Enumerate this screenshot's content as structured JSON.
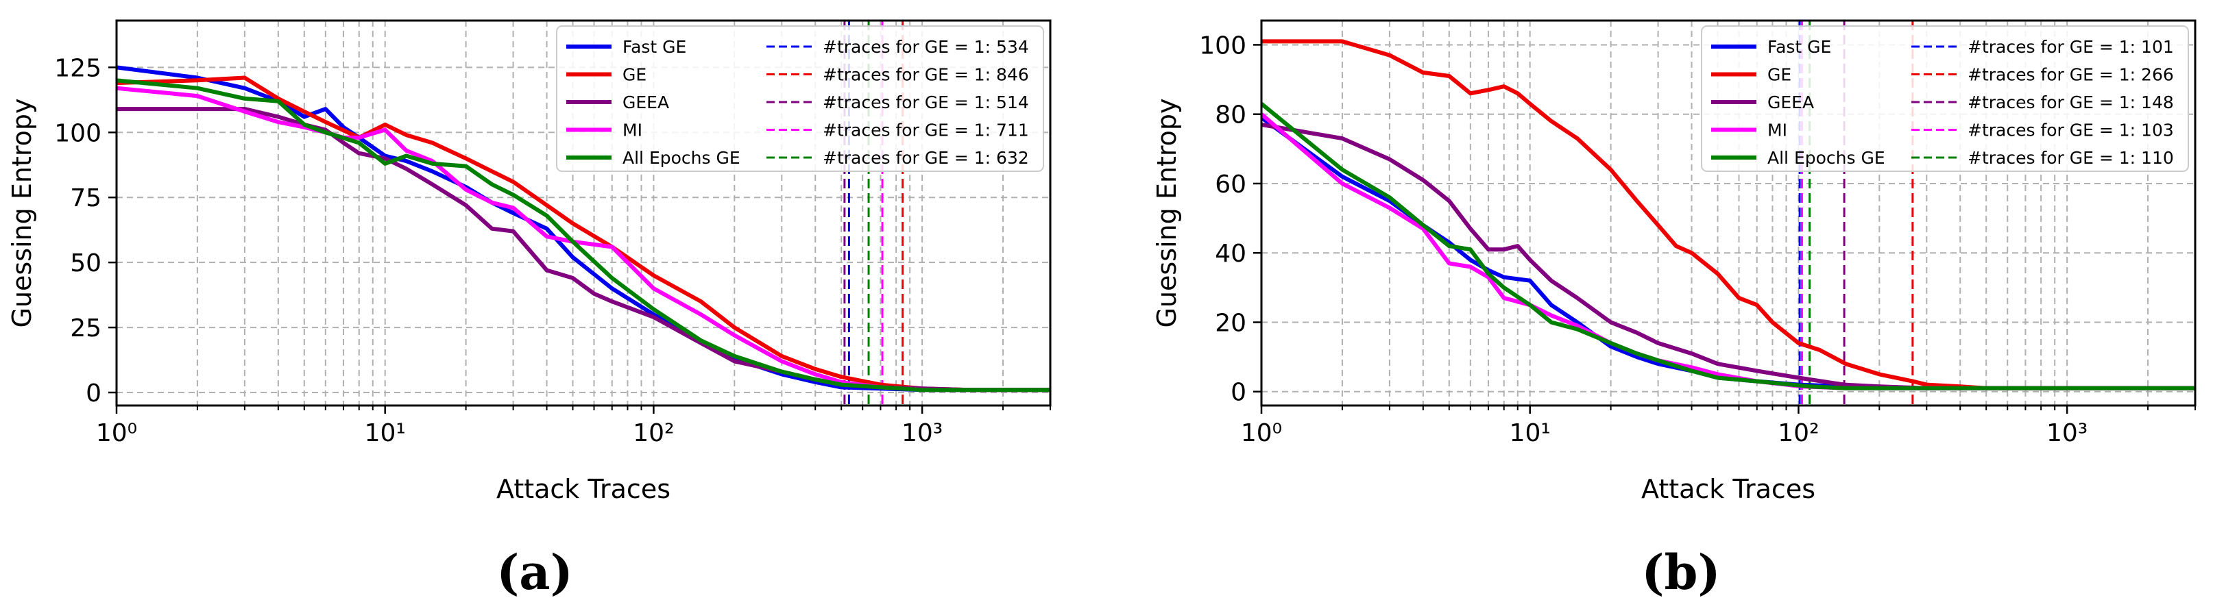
{
  "chart_data": [
    {
      "type": "line",
      "panel_label": "(a)",
      "xlabel": "Attack Traces",
      "ylabel": "Guessing Entropy",
      "xscale": "log",
      "xlim": [
        1,
        3000
      ],
      "ylim": [
        -5,
        143
      ],
      "xticks": [
        1,
        10,
        100,
        1000
      ],
      "xtick_labels": [
        "10⁰",
        "10¹",
        "10²",
        "10³"
      ],
      "yticks": [
        0,
        25,
        50,
        75,
        100,
        125
      ],
      "grid": true,
      "legend": "top-right",
      "colors": {
        "fast_ge": "#0000ee",
        "ge": "#ee0000",
        "geea": "#800080",
        "mi": "#ff00ff",
        "all": "#008000"
      },
      "series": [
        {
          "name": "Fast GE",
          "key": "fast_ge",
          "width": 6,
          "x": [
            1,
            2,
            3,
            4,
            5,
            6,
            7,
            8,
            10,
            12,
            15,
            20,
            25,
            30,
            40,
            50,
            70,
            100,
            150,
            200,
            300,
            400,
            500,
            700,
            1000,
            1500,
            2000,
            3000
          ],
          "y": [
            125,
            121,
            117,
            112,
            106,
            109,
            102,
            98,
            91,
            89,
            85,
            79,
            73,
            69,
            63,
            52,
            40,
            30,
            20,
            13,
            7,
            4,
            2,
            1.5,
            1,
            1,
            1,
            1
          ]
        },
        {
          "name": "GE",
          "key": "ge",
          "width": 6,
          "x": [
            1,
            2,
            3,
            4,
            5,
            6,
            8,
            10,
            12,
            15,
            20,
            25,
            30,
            40,
            50,
            70,
            100,
            150,
            200,
            300,
            400,
            500,
            700,
            1000,
            1500,
            2000,
            3000
          ],
          "y": [
            119,
            120,
            121,
            113,
            108,
            104,
            98,
            103,
            99,
            96,
            90,
            85,
            81,
            72,
            65,
            56,
            45,
            35,
            25,
            14,
            9,
            6,
            3,
            1.5,
            1,
            1,
            1
          ]
        },
        {
          "name": "GEEA",
          "key": "geea",
          "width": 6,
          "x": [
            1,
            2,
            3,
            4,
            5,
            6,
            7,
            8,
            10,
            12,
            15,
            20,
            25,
            30,
            40,
            50,
            60,
            70,
            100,
            150,
            200,
            300,
            400,
            500,
            700,
            1000,
            1500,
            2000,
            3000
          ],
          "y": [
            109,
            109,
            109,
            106,
            103,
            101,
            96,
            92,
            90,
            86,
            80,
            72,
            63,
            62,
            47,
            44,
            38,
            35,
            29,
            19,
            12,
            8,
            5,
            3,
            2,
            1.5,
            1,
            1,
            1
          ]
        },
        {
          "name": "MI",
          "key": "mi",
          "width": 6,
          "x": [
            1,
            2,
            3,
            4,
            5,
            6,
            7,
            8,
            10,
            12,
            15,
            20,
            25,
            30,
            40,
            50,
            70,
            100,
            150,
            200,
            300,
            400,
            500,
            700,
            1000,
            1500,
            2000,
            3000
          ],
          "y": [
            117,
            114,
            108,
            104,
            102,
            100,
            98,
            98,
            101,
            93,
            89,
            78,
            73,
            71,
            60,
            58,
            56,
            40,
            30,
            22,
            12,
            7,
            4,
            2,
            1,
            1,
            1,
            1
          ]
        },
        {
          "name": "All Epochs GE",
          "key": "all",
          "width": 6,
          "x": [
            1,
            2,
            3,
            4,
            5,
            6,
            8,
            10,
            12,
            15,
            20,
            25,
            30,
            40,
            50,
            70,
            100,
            150,
            200,
            300,
            400,
            500,
            700,
            1000,
            1500,
            2000,
            3000
          ],
          "y": [
            120,
            117,
            113,
            112,
            103,
            100,
            96,
            88,
            91,
            88,
            87,
            80,
            76,
            68,
            58,
            44,
            32,
            20,
            14,
            8,
            5,
            3,
            2,
            1,
            1,
            1,
            1
          ]
        }
      ],
      "vlines": [
        {
          "label": "#traces for GE = 1: 534",
          "key": "fast_ge",
          "x": 534
        },
        {
          "label": "#traces for GE = 1: 846",
          "key": "ge",
          "x": 846
        },
        {
          "label": "#traces for GE = 1: 514",
          "key": "geea",
          "x": 514
        },
        {
          "label": "#traces for GE = 1: 711",
          "key": "mi",
          "x": 711
        },
        {
          "label": "#traces for GE = 1: 632",
          "key": "all",
          "x": 632
        }
      ]
    },
    {
      "type": "line",
      "panel_label": "(b)",
      "xlabel": "Attack Traces",
      "ylabel": "Guessing Entropy",
      "xscale": "log",
      "xlim": [
        1,
        3000
      ],
      "ylim": [
        -4,
        107
      ],
      "xticks": [
        1,
        10,
        100,
        1000
      ],
      "xtick_labels": [
        "10⁰",
        "10¹",
        "10²",
        "10³"
      ],
      "yticks": [
        0,
        20,
        40,
        60,
        80,
        100
      ],
      "grid": true,
      "legend": "top-right",
      "colors": {
        "fast_ge": "#0000ee",
        "ge": "#ee0000",
        "geea": "#800080",
        "mi": "#ff00ff",
        "all": "#008000"
      },
      "series": [
        {
          "name": "Fast GE",
          "key": "fast_ge",
          "width": 6,
          "x": [
            1,
            2,
            3,
            4,
            5,
            6,
            7,
            8,
            10,
            12,
            15,
            20,
            25,
            30,
            40,
            50,
            70,
            100,
            150,
            200,
            300,
            500,
            1000,
            3000
          ],
          "y": [
            79,
            62,
            55,
            48,
            43,
            38,
            35,
            33,
            32,
            25,
            20,
            13,
            10,
            8,
            6,
            4,
            3,
            2,
            1.5,
            1,
            1,
            1,
            1,
            1
          ]
        },
        {
          "name": "GE",
          "key": "ge",
          "width": 6,
          "x": [
            1,
            2,
            3,
            4,
            5,
            6,
            7,
            8,
            9,
            10,
            12,
            15,
            20,
            25,
            30,
            35,
            40,
            50,
            60,
            70,
            80,
            100,
            120,
            150,
            200,
            266,
            300,
            400,
            500,
            700,
            1000,
            3000
          ],
          "y": [
            101,
            101,
            97,
            92,
            91,
            86,
            87,
            88,
            86,
            83,
            78,
            73,
            64,
            55,
            48,
            42,
            40,
            34,
            27,
            25,
            20,
            14,
            12,
            8,
            5,
            3,
            2,
            1.5,
            1,
            1,
            1,
            1
          ]
        },
        {
          "name": "GEEA",
          "key": "geea",
          "width": 6,
          "x": [
            1,
            2,
            3,
            4,
            5,
            6,
            7,
            8,
            9,
            10,
            12,
            15,
            20,
            25,
            30,
            40,
            50,
            70,
            100,
            148,
            200,
            300,
            500,
            1000,
            3000
          ],
          "y": [
            77,
            73,
            67,
            61,
            55,
            47,
            41,
            41,
            42,
            38,
            32,
            27,
            20,
            17,
            14,
            11,
            8,
            6,
            4,
            2,
            1.5,
            1,
            1,
            1,
            1
          ]
        },
        {
          "name": "MI",
          "key": "mi",
          "width": 6,
          "x": [
            1,
            2,
            3,
            4,
            5,
            6,
            7,
            8,
            10,
            12,
            15,
            20,
            25,
            30,
            40,
            50,
            70,
            103,
            150,
            200,
            300,
            500,
            1000,
            3000
          ],
          "y": [
            80,
            60,
            53,
            47,
            37,
            36,
            33,
            27,
            25,
            22,
            19,
            14,
            11,
            9,
            7,
            5,
            3,
            1.5,
            1,
            1,
            1,
            1,
            1,
            1
          ]
        },
        {
          "name": "All Epochs GE",
          "key": "all",
          "width": 6,
          "x": [
            1,
            2,
            3,
            4,
            5,
            6,
            7,
            8,
            10,
            12,
            15,
            20,
            25,
            30,
            40,
            50,
            70,
            110,
            150,
            200,
            300,
            500,
            1000,
            3000
          ],
          "y": [
            83,
            64,
            56,
            48,
            42,
            41,
            34,
            30,
            25,
            20,
            18,
            14,
            11,
            9,
            6,
            4,
            3,
            1.5,
            1,
            1,
            1,
            1,
            1,
            1
          ]
        }
      ],
      "vlines": [
        {
          "label": "#traces for GE = 1: 101",
          "key": "fast_ge",
          "x": 101
        },
        {
          "label": "#traces for GE = 1: 266",
          "key": "ge",
          "x": 266
        },
        {
          "label": "#traces for GE = 1: 148",
          "key": "geea",
          "x": 148
        },
        {
          "label": "#traces for GE = 1: 103",
          "key": "mi",
          "x": 103
        },
        {
          "label": "#traces for GE = 1: 110",
          "key": "all",
          "x": 110
        }
      ]
    }
  ]
}
